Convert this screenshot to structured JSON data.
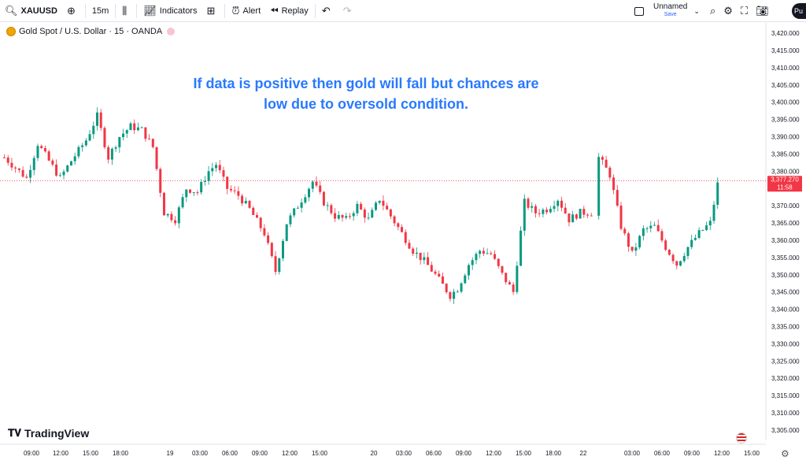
{
  "toolbar": {
    "symbol": "XAUUSD",
    "interval": "15m",
    "indicators_label": "Indicators",
    "alert_label": "Alert",
    "replay_label": "Replay",
    "layout_name": "Unnamed",
    "save_label": "Save",
    "publish_label": "Pu"
  },
  "legend": {
    "title": "Gold Spot / U.S. Dollar · 15 · OANDA"
  },
  "annotation": {
    "line1": "If data is positive then gold will fall but chances are",
    "line2": "low due to oversold condition."
  },
  "branding": {
    "logo_text": "TradingView"
  },
  "chart_data": {
    "type": "candlestick",
    "ylim": [
      3302,
      3423
    ],
    "y_ticks": [
      "3,420.000",
      "3,415.000",
      "3,410.000",
      "3,405.000",
      "3,400.000",
      "3,395.000",
      "3,390.000",
      "3,385.000",
      "3,380.000",
      "3,375.000",
      "3,370.000",
      "3,365.000",
      "3,360.000",
      "3,355.000",
      "3,350.000",
      "3,345.000",
      "3,340.000",
      "3,335.000",
      "3,330.000",
      "3,325.000",
      "3,320.000",
      "3,315.000",
      "3,310.000",
      "3,305.000"
    ],
    "x_ticks": [
      "09:00",
      "12:00",
      "15:00",
      "18:00",
      "19",
      "03:00",
      "06:00",
      "09:00",
      "12:00",
      "15:00",
      "20",
      "03:00",
      "06:00",
      "09:00",
      "12:00",
      "15:00",
      "18:00",
      "22",
      "03:00",
      "06:00",
      "09:00",
      "12:00",
      "15:00"
    ],
    "current_price": 3377.27,
    "current_price_label": "3,377.270",
    "countdown_label": "11:58",
    "up_color": "#089981",
    "down_color": "#f23645",
    "close_path": [
      [
        0,
        3384
      ],
      [
        3,
        3381
      ],
      [
        6,
        3378
      ],
      [
        9,
        3388
      ],
      [
        12,
        3383
      ],
      [
        15,
        3378
      ],
      [
        18,
        3383
      ],
      [
        22,
        3389
      ],
      [
        25,
        3396
      ],
      [
        28,
        3384
      ],
      [
        31,
        3390
      ],
      [
        34,
        3393
      ],
      [
        37,
        3392
      ],
      [
        40,
        3387
      ],
      [
        43,
        3368
      ],
      [
        46,
        3366
      ],
      [
        49,
        3375
      ],
      [
        52,
        3374
      ],
      [
        55,
        3380
      ],
      [
        57,
        3382
      ],
      [
        60,
        3375
      ],
      [
        63,
        3373
      ],
      [
        66,
        3369
      ],
      [
        70,
        3362
      ],
      [
        73,
        3351
      ],
      [
        76,
        3365
      ],
      [
        79,
        3370
      ],
      [
        83,
        3377
      ],
      [
        86,
        3371
      ],
      [
        89,
        3367
      ],
      [
        92,
        3366
      ],
      [
        95,
        3370
      ],
      [
        98,
        3366
      ],
      [
        101,
        3372
      ],
      [
        104,
        3367
      ],
      [
        107,
        3362
      ],
      [
        110,
        3357
      ],
      [
        113,
        3354
      ],
      [
        116,
        3350
      ],
      [
        120,
        3344
      ],
      [
        122,
        3346
      ],
      [
        125,
        3353
      ],
      [
        128,
        3357
      ],
      [
        131,
        3356
      ],
      [
        134,
        3350
      ],
      [
        137,
        3345
      ],
      [
        140,
        3371
      ],
      [
        143,
        3368
      ],
      [
        146,
        3369
      ],
      [
        149,
        3372
      ],
      [
        152,
        3366
      ],
      [
        155,
        3368
      ],
      [
        158,
        3368
      ],
      [
        158.6,
        3368
      ],
      [
        160,
        3384
      ],
      [
        163,
        3379
      ],
      [
        166,
        3364
      ],
      [
        169,
        3356
      ],
      [
        172,
        3363
      ],
      [
        175,
        3364
      ],
      [
        178,
        3358
      ],
      [
        181,
        3353
      ],
      [
        184,
        3358
      ],
      [
        187,
        3362
      ],
      [
        190,
        3365
      ],
      [
        192.5,
        3379
      ]
    ]
  }
}
